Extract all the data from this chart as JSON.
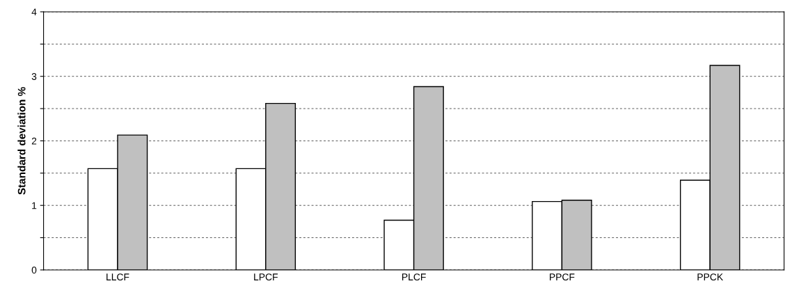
{
  "chart_data": {
    "type": "bar",
    "ylabel": "Standard deviation %",
    "categories": [
      "LLCF",
      "LPCF",
      "PLCF",
      "PPCF",
      "PPCK"
    ],
    "series": [
      {
        "color": "#ffffff",
        "values": [
          1.57,
          1.57,
          0.77,
          1.06,
          1.39
        ]
      },
      {
        "color": "#c0c0c0",
        "values": [
          2.09,
          2.58,
          2.84,
          1.08,
          3.17
        ]
      }
    ],
    "ylim": [
      0,
      4
    ],
    "yticks": [
      0,
      {
        "value": 0.5,
        "label": null
      },
      1,
      {
        "value": 1.5,
        "label": null
      },
      2,
      {
        "value": 2.5,
        "label": null
      },
      3,
      {
        "value": 3.5,
        "label": null
      },
      4
    ],
    "grid": "y"
  }
}
